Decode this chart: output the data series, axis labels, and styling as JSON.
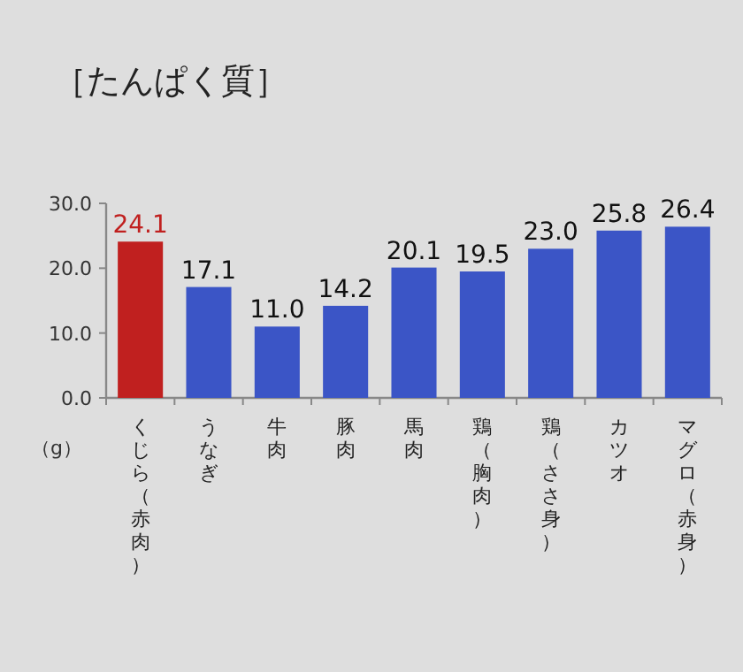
{
  "chart_data": {
    "type": "bar",
    "title": "［たんぱく質］",
    "ylabel": "（g）",
    "categories": [
      "くじら（赤肉）",
      "うなぎ",
      "牛肉",
      "豚肉",
      "馬肉",
      "鶏（胸肉）",
      "鶏（ささ身）",
      "カツオ",
      "マグロ（赤身）"
    ],
    "values": [
      24.1,
      17.1,
      11.0,
      14.2,
      20.1,
      19.5,
      23.0,
      25.8,
      26.4
    ],
    "colors": [
      "#c0201f",
      "#3b55c6",
      "#3b55c6",
      "#3b55c6",
      "#3b55c6",
      "#3b55c6",
      "#3b55c6",
      "#3b55c6",
      "#3b55c6"
    ],
    "value_labels": [
      "24.1",
      "17.1",
      "11.0",
      "14.2",
      "20.1",
      "19.5",
      "23.0",
      "25.8",
      "26.4"
    ],
    "ylim": [
      0,
      30
    ],
    "yticks": [
      {
        "value": 0,
        "label": "0.0"
      },
      {
        "value": 10,
        "label": "10.0"
      },
      {
        "value": 20,
        "label": "20.0"
      },
      {
        "value": 30,
        "label": "30.0"
      }
    ]
  }
}
